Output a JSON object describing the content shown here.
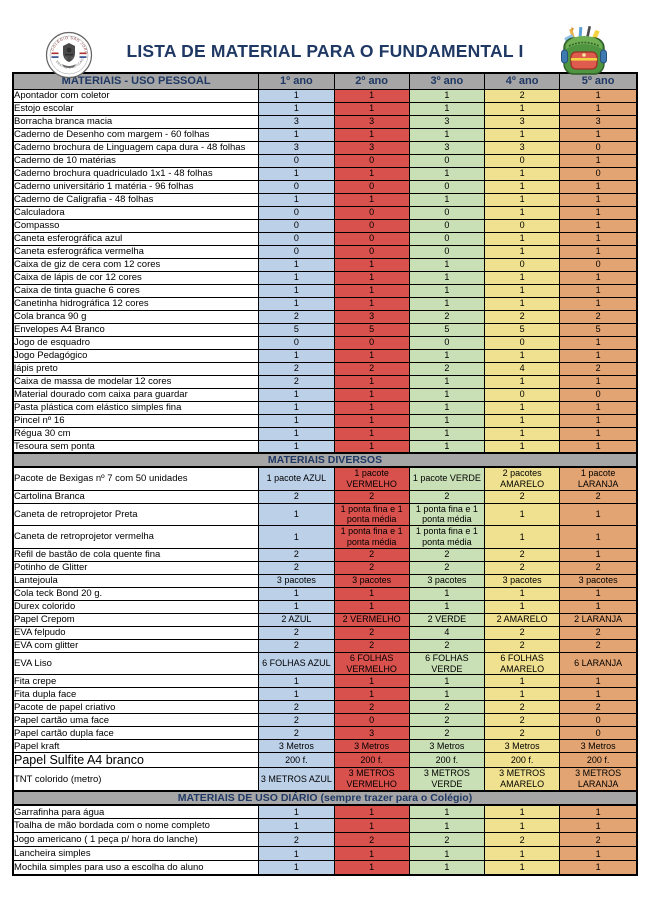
{
  "title": "LISTA DE MATERIAL PARA O FUNDAMENTAL I",
  "logos": {
    "left": "school-seal-logo",
    "right": "school-supplies-backpack-logo"
  },
  "colors": {
    "title_navy": "#1F3864",
    "header_gray": "#A6A6A6",
    "year_1_blue": "#BCD0E8",
    "year_2_red": "#D9514D",
    "year_3_green": "#C9DFB5",
    "year_4_yellow": "#F0E190",
    "year_5_orange": "#E2A472"
  },
  "columns": {
    "materials_header": "MATERIAIS - USO PESSOAL",
    "years": [
      "1º ano",
      "2º ano",
      "3º ano",
      "4º ano",
      "5º ano"
    ],
    "year_colors": [
      "#BCD0E8",
      "#D9514D",
      "#C9DFB5",
      "#F0E190",
      "#E2A472"
    ]
  },
  "sections": [
    {
      "title": "",
      "rows": [
        {
          "label": "Apontador com coletor",
          "values": [
            "1",
            "1",
            "1",
            "2",
            "1"
          ]
        },
        {
          "label": "Estojo escolar",
          "values": [
            "1",
            "1",
            "1",
            "1",
            "1"
          ]
        },
        {
          "label": "Borracha branca macia",
          "values": [
            "3",
            "3",
            "3",
            "3",
            "3"
          ]
        },
        {
          "label": "Caderno de Desenho com margem - 60 folhas",
          "values": [
            "1",
            "1",
            "1",
            "1",
            "1"
          ]
        },
        {
          "label": "Caderno brochura de Linguagem capa dura - 48 folhas",
          "values": [
            "3",
            "3",
            "3",
            "3",
            "0"
          ]
        },
        {
          "label": "Caderno de 10 matérias",
          "values": [
            "0",
            "0",
            "0",
            "0",
            "1"
          ]
        },
        {
          "label": "Caderno brochura quadriculado 1x1 - 48 folhas",
          "values": [
            "1",
            "1",
            "1",
            "1",
            "0"
          ]
        },
        {
          "label": "Caderno universitário 1 matéria - 96 folhas",
          "values": [
            "0",
            "0",
            "0",
            "1",
            "1"
          ]
        },
        {
          "label": "Caderno de Caligrafia - 48 folhas",
          "values": [
            "1",
            "1",
            "1",
            "1",
            "1"
          ]
        },
        {
          "label": "Calculadora",
          "values": [
            "0",
            "0",
            "0",
            "1",
            "1"
          ]
        },
        {
          "label": "Compasso",
          "values": [
            "0",
            "0",
            "0",
            "0",
            "1"
          ]
        },
        {
          "label": "Caneta esferográfica azul",
          "values": [
            "0",
            "0",
            "0",
            "1",
            "1"
          ]
        },
        {
          "label": "Caneta esferográfica vermelha",
          "values": [
            "0",
            "0",
            "0",
            "1",
            "1"
          ]
        },
        {
          "label": "Caixa de giz de cera com 12 cores",
          "values": [
            "1",
            "1",
            "1",
            "0",
            "0"
          ]
        },
        {
          "label": "Caixa de lápis de cor 12 cores",
          "values": [
            "1",
            "1",
            "1",
            "1",
            "1"
          ]
        },
        {
          "label": "Caixa de tinta guache 6 cores",
          "values": [
            "1",
            "1",
            "1",
            "1",
            "1"
          ]
        },
        {
          "label": "Canetinha hidrográfica 12 cores",
          "values": [
            "1",
            "1",
            "1",
            "1",
            "1"
          ]
        },
        {
          "label": "Cola branca 90 g",
          "values": [
            "2",
            "3",
            "2",
            "2",
            "2"
          ]
        },
        {
          "label": "Envelopes A4 Branco",
          "values": [
            "5",
            "5",
            "5",
            "5",
            "5"
          ]
        },
        {
          "label": "Jogo de esquadro",
          "values": [
            "0",
            "0",
            "0",
            "0",
            "1"
          ]
        },
        {
          "label": "Jogo Pedagógico",
          "values": [
            "1",
            "1",
            "1",
            "1",
            "1"
          ]
        },
        {
          "label": "lápis preto",
          "values": [
            "2",
            "2",
            "2",
            "4",
            "2"
          ]
        },
        {
          "label": "Caixa de massa de modelar 12 cores",
          "values": [
            "2",
            "1",
            "1",
            "1",
            "1"
          ]
        },
        {
          "label": "Material dourado com caixa para guardar",
          "values": [
            "1",
            "1",
            "1",
            "0",
            "0"
          ]
        },
        {
          "label": "Pasta plástica com elástico simples fina",
          "values": [
            "1",
            "1",
            "1",
            "1",
            "1"
          ]
        },
        {
          "label": "Pincel nº 16",
          "values": [
            "1",
            "1",
            "1",
            "1",
            "1"
          ]
        },
        {
          "label": "Régua 30 cm",
          "values": [
            "1",
            "1",
            "1",
            "1",
            "1"
          ]
        },
        {
          "label": "Tesoura sem ponta",
          "values": [
            "1",
            "1",
            "1",
            "1",
            "1"
          ]
        }
      ]
    },
    {
      "title": "MATERIAIS DIVERSOS",
      "rows": [
        {
          "label": "Pacote de Bexigas nº 7  com 50 unidades",
          "values": [
            "1 pacote AZUL",
            "1 pacote VERMELHO",
            "1 pacote VERDE",
            "2 pacotes AMARELO",
            "1 pacote LARANJA"
          ]
        },
        {
          "label": "Cartolina Branca",
          "values": [
            "2",
            "2",
            "2",
            "2",
            "2"
          ]
        },
        {
          "label": "Caneta de retroprojetor Preta",
          "values": [
            "1",
            "1 ponta fina e 1 ponta média",
            "1 ponta fina e 1 ponta média",
            "1",
            "1"
          ]
        },
        {
          "label": "Caneta de retroprojetor  vermelha",
          "values": [
            "1",
            "1 ponta fina e 1 ponta média",
            "1 ponta fina e 1 ponta média",
            "1",
            "1"
          ]
        },
        {
          "label": "Refil de bastão de cola quente fina",
          "values": [
            "2",
            "2",
            "2",
            "2",
            "1"
          ]
        },
        {
          "label": "Potinho de Glitter",
          "values": [
            "2",
            "2",
            "2",
            "2",
            "2"
          ]
        },
        {
          "label": "Lantejoula",
          "values": [
            "3 pacotes",
            "3 pacotes",
            "3 pacotes",
            "3 pacotes",
            "3 pacotes"
          ]
        },
        {
          "label": "Cola teck Bond 20 g.",
          "values": [
            "1",
            "1",
            "1",
            "1",
            "1"
          ]
        },
        {
          "label": "Durex colorido",
          "values": [
            "1",
            "1",
            "1",
            "1",
            "1"
          ]
        },
        {
          "label": "Papel Crepom",
          "values": [
            "2 AZUL",
            "2 VERMELHO",
            "2 VERDE",
            "2 AMARELO",
            "2 LARANJA"
          ]
        },
        {
          "label": "EVA felpudo",
          "values": [
            "2",
            "2",
            "4",
            "2",
            "2"
          ]
        },
        {
          "label": "EVA com glitter",
          "values": [
            "2",
            "2",
            "2",
            "2",
            "2"
          ]
        },
        {
          "label": "EVA Liso",
          "values": [
            "6 FOLHAS AZUL",
            "6 FOLHAS VERMELHO",
            "6 FOLHAS VERDE",
            "6 FOLHAS AMARELO",
            "6 LARANJA"
          ]
        },
        {
          "label": "Fita crepe",
          "values": [
            "1",
            "1",
            "1",
            "1",
            "1"
          ]
        },
        {
          "label": "Fita dupla face",
          "values": [
            "1",
            "1",
            "1",
            "1",
            "1"
          ]
        },
        {
          "label": "Pacote de papel criativo",
          "values": [
            "2",
            "2",
            "2",
            "2",
            "2"
          ]
        },
        {
          "label": "Papel cartão uma face",
          "values": [
            "2",
            "0",
            "2",
            "2",
            "0"
          ]
        },
        {
          "label": "Papel cartão dupla face",
          "values": [
            "2",
            "3",
            "2",
            "2",
            "0"
          ]
        },
        {
          "label": "Papel kraft",
          "values": [
            "3 Metros",
            "3 Metros",
            "3 Metros",
            "3 Metros",
            "3 Metros"
          ]
        },
        {
          "label": "Papel Sulfite A4 branco",
          "big_label": true,
          "values": [
            "200 f.",
            "200 f.",
            "200 f.",
            "200 f.",
            "200 f."
          ]
        },
        {
          "label": "TNT colorido (metro)",
          "values": [
            "3 METROS AZUL",
            "3 METROS VERMELHO",
            "3 METROS VERDE",
            "3 METROS AMARELO",
            "3 METROS LARANJA"
          ]
        }
      ]
    },
    {
      "title": "MATERIAIS DE USO DIÁRIO (sempre trazer para o Colégio)",
      "rows": [
        {
          "label": "Garrafinha para água",
          "values": [
            "1",
            "1",
            "1",
            "1",
            "1"
          ]
        },
        {
          "label": "Toalha de mão bordada com o nome completo",
          "values": [
            "1",
            "1",
            "1",
            "1",
            "1"
          ]
        },
        {
          "label": "Jogo americano ( 1 peça p/ hora do lanche)",
          "values": [
            "2",
            "2",
            "2",
            "2",
            "2"
          ]
        },
        {
          "label": "Lancheira simples",
          "values": [
            "1",
            "1",
            "1",
            "1",
            "1"
          ]
        },
        {
          "label": "Mochila simples para uso a escolha do aluno",
          "values": [
            "1",
            "1",
            "1",
            "1",
            "1"
          ]
        }
      ]
    }
  ]
}
